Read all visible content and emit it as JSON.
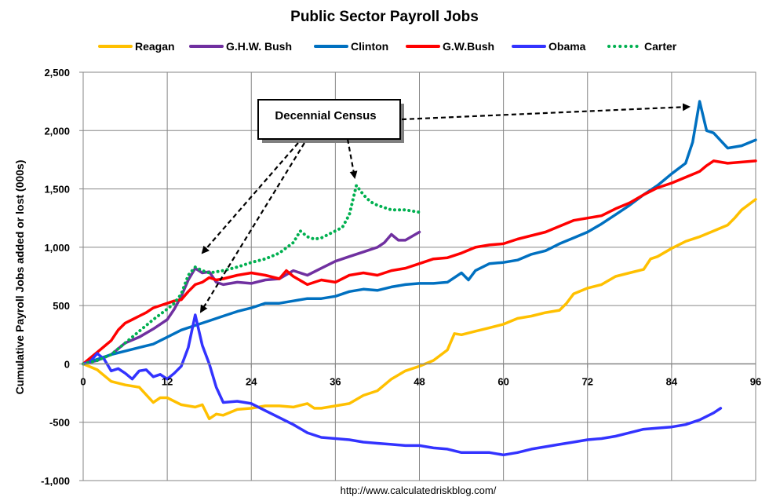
{
  "chart_data": {
    "type": "line",
    "title": "Public Sector Payroll Jobs",
    "ylabel": "Cumulative Payroll Jobs added or lost (000s)",
    "xlabel": "",
    "xlim": [
      0,
      96
    ],
    "ylim": [
      -1000,
      2500
    ],
    "xticks": [
      0,
      12,
      24,
      36,
      48,
      60,
      72,
      84,
      96
    ],
    "yticks": [
      -1000,
      -500,
      0,
      500,
      1000,
      1500,
      2000,
      2500
    ],
    "ytick_labels": [
      "-1,000",
      "-500",
      "0",
      "500",
      "1,000",
      "1,500",
      "2,000",
      "2,500"
    ],
    "grid": "horizontal and vertical",
    "legend_position": "top",
    "source": "http://www.calculatedriskblog.com/",
    "annotation": "Decennial Census",
    "series": [
      {
        "name": "Reagan",
        "color": "#ffc000",
        "style": "solid",
        "x": [
          0,
          2,
          4,
          6,
          8,
          10,
          11,
          12,
          14,
          16,
          17,
          18,
          19,
          20,
          22,
          24,
          26,
          28,
          30,
          32,
          33,
          34,
          36,
          38,
          40,
          42,
          44,
          46,
          48,
          50,
          52,
          53,
          54,
          56,
          58,
          60,
          62,
          64,
          66,
          68,
          69,
          70,
          72,
          74,
          76,
          78,
          80,
          81,
          82,
          84,
          86,
          88,
          90,
          92,
          93,
          94,
          96
        ],
        "y": [
          0,
          -50,
          -150,
          -180,
          -200,
          -330,
          -290,
          -290,
          -350,
          -370,
          -350,
          -470,
          -430,
          -440,
          -390,
          -380,
          -360,
          -360,
          -370,
          -340,
          -380,
          -380,
          -360,
          -340,
          -270,
          -230,
          -130,
          -60,
          -20,
          30,
          120,
          260,
          250,
          280,
          310,
          340,
          390,
          410,
          440,
          460,
          520,
          600,
          650,
          680,
          750,
          780,
          810,
          900,
          920,
          990,
          1050,
          1090,
          1140,
          1190,
          1250,
          1320,
          1410
        ]
      },
      {
        "name": "G.H.W. Bush",
        "color": "#7030a0",
        "style": "solid",
        "x": [
          0,
          2,
          4,
          6,
          8,
          10,
          12,
          13,
          14,
          15,
          16,
          17,
          18,
          19,
          20,
          22,
          24,
          26,
          28,
          30,
          32,
          34,
          36,
          38,
          40,
          42,
          43,
          44,
          45,
          46,
          48
        ],
        "y": [
          0,
          30,
          80,
          180,
          230,
          300,
          380,
          470,
          580,
          720,
          820,
          780,
          790,
          700,
          680,
          700,
          690,
          720,
          730,
          800,
          760,
          820,
          880,
          920,
          960,
          1000,
          1040,
          1110,
          1060,
          1060,
          1130
        ]
      },
      {
        "name": "Clinton",
        "color": "#0070c0",
        "style": "solid",
        "x": [
          0,
          2,
          4,
          6,
          8,
          10,
          12,
          14,
          16,
          18,
          20,
          22,
          24,
          26,
          28,
          30,
          32,
          34,
          36,
          38,
          40,
          42,
          44,
          46,
          48,
          50,
          52,
          54,
          55,
          56,
          58,
          60,
          62,
          64,
          66,
          68,
          70,
          72,
          74,
          76,
          78,
          80,
          82,
          84,
          86,
          87,
          88,
          89,
          90,
          92,
          94,
          96
        ],
        "y": [
          0,
          40,
          80,
          110,
          140,
          170,
          230,
          290,
          330,
          370,
          410,
          450,
          480,
          520,
          520,
          540,
          560,
          560,
          580,
          620,
          640,
          630,
          660,
          680,
          690,
          690,
          700,
          780,
          720,
          800,
          860,
          870,
          890,
          940,
          970,
          1030,
          1080,
          1130,
          1200,
          1280,
          1360,
          1450,
          1530,
          1630,
          1720,
          1900,
          2250,
          2000,
          1980,
          1850,
          1870,
          1920
        ]
      },
      {
        "name": "G.W.Bush",
        "color": "#ff0000",
        "style": "solid",
        "x": [
          0,
          1,
          2,
          3,
          4,
          5,
          6,
          7,
          8,
          9,
          10,
          11,
          12,
          13,
          14,
          15,
          16,
          17,
          18,
          19,
          20,
          22,
          24,
          26,
          28,
          29,
          30,
          32,
          34,
          36,
          38,
          40,
          42,
          44,
          46,
          48,
          50,
          52,
          54,
          56,
          58,
          60,
          62,
          64,
          66,
          68,
          70,
          72,
          74,
          76,
          78,
          80,
          82,
          84,
          86,
          88,
          89,
          90,
          92,
          94,
          96
        ],
        "y": [
          0,
          50,
          100,
          150,
          200,
          290,
          350,
          380,
          410,
          440,
          480,
          500,
          520,
          540,
          550,
          620,
          680,
          700,
          740,
          720,
          730,
          760,
          780,
          760,
          730,
          800,
          750,
          680,
          720,
          700,
          760,
          780,
          760,
          800,
          820,
          860,
          900,
          910,
          950,
          1000,
          1020,
          1030,
          1070,
          1100,
          1130,
          1180,
          1230,
          1250,
          1270,
          1330,
          1380,
          1450,
          1510,
          1550,
          1600,
          1650,
          1700,
          1740,
          1720,
          1730,
          1740
        ]
      },
      {
        "name": "Obama",
        "color": "#3333ff",
        "style": "solid",
        "x": [
          0,
          1,
          2,
          3,
          4,
          5,
          6,
          7,
          8,
          9,
          10,
          11,
          12,
          13,
          14,
          15,
          16,
          17,
          18,
          19,
          20,
          22,
          24,
          26,
          28,
          30,
          32,
          34,
          36,
          38,
          40,
          42,
          44,
          46,
          48,
          50,
          52,
          54,
          56,
          58,
          60,
          62,
          64,
          66,
          68,
          70,
          72,
          74,
          76,
          78,
          80,
          82,
          84,
          86,
          88,
          90,
          91
        ],
        "y": [
          0,
          20,
          90,
          40,
          -60,
          -40,
          -80,
          -130,
          -60,
          -50,
          -110,
          -90,
          -130,
          -80,
          -20,
          140,
          420,
          160,
          0,
          -200,
          -330,
          -320,
          -340,
          -400,
          -460,
          -520,
          -590,
          -630,
          -640,
          -650,
          -670,
          -680,
          -690,
          -700,
          -700,
          -720,
          -730,
          -760,
          -760,
          -760,
          -780,
          -760,
          -730,
          -710,
          -690,
          -670,
          -650,
          -640,
          -620,
          -590,
          -560,
          -550,
          -540,
          -520,
          -480,
          -420,
          -380
        ]
      },
      {
        "name": "Carter",
        "color": "#00b050",
        "style": "dotted",
        "x": [
          0,
          2,
          4,
          6,
          8,
          10,
          12,
          13,
          14,
          15,
          16,
          17,
          18,
          19,
          20,
          22,
          24,
          26,
          28,
          30,
          31,
          32,
          33,
          34,
          36,
          37,
          38,
          39,
          40,
          41,
          42,
          44,
          46,
          48
        ],
        "y": [
          0,
          30,
          80,
          180,
          280,
          380,
          470,
          520,
          600,
          760,
          830,
          800,
          780,
          790,
          800,
          830,
          870,
          900,
          950,
          1040,
          1140,
          1090,
          1070,
          1080,
          1140,
          1170,
          1280,
          1530,
          1450,
          1390,
          1360,
          1320,
          1320,
          1300
        ]
      }
    ]
  }
}
